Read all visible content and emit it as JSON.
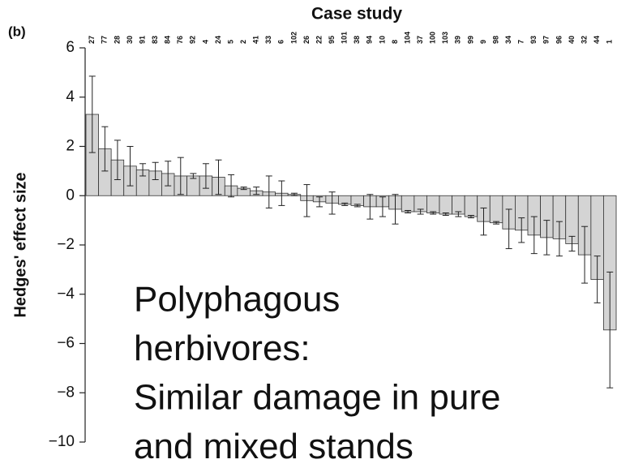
{
  "chart_data": {
    "type": "bar",
    "panel_label": "(b)",
    "title": "Case study",
    "y_label": "Hedges' effect size",
    "annotation": [
      "Polyphagous",
      "herbivores:",
      "Similar damage in pure",
      "and mixed stands"
    ],
    "categories": [
      "27",
      "77",
      "28",
      "30",
      "91",
      "83",
      "84",
      "76",
      "92",
      "4",
      "24",
      "5",
      "2",
      "41",
      "33",
      "6",
      "102",
      "26",
      "22",
      "95",
      "101",
      "38",
      "94",
      "10",
      "8",
      "104",
      "37",
      "100",
      "103",
      "39",
      "99",
      "9",
      "98",
      "34",
      "7",
      "93",
      "97",
      "96",
      "40",
      "32",
      "44",
      "1"
    ],
    "values": [
      3.3,
      1.9,
      1.45,
      1.2,
      1.05,
      1.0,
      0.9,
      0.8,
      0.8,
      0.8,
      0.75,
      0.4,
      0.3,
      0.2,
      0.15,
      0.1,
      0.05,
      -0.2,
      -0.25,
      -0.3,
      -0.35,
      -0.4,
      -0.45,
      -0.45,
      -0.55,
      -0.65,
      -0.65,
      -0.7,
      -0.75,
      -0.75,
      -0.85,
      -1.05,
      -1.1,
      -1.35,
      -1.4,
      -1.6,
      -1.7,
      -1.75,
      -1.95,
      -2.4,
      -3.4,
      -5.45
    ],
    "errors": [
      1.55,
      0.9,
      0.8,
      0.8,
      0.25,
      0.35,
      0.5,
      0.75,
      0.1,
      0.5,
      0.7,
      0.45,
      0.05,
      0.15,
      0.65,
      0.5,
      0.05,
      0.65,
      0.2,
      0.45,
      0.05,
      0.05,
      0.5,
      0.4,
      0.6,
      0.05,
      0.1,
      0.05,
      0.05,
      0.1,
      0.05,
      0.55,
      0.05,
      0.8,
      0.5,
      0.75,
      0.7,
      0.7,
      0.3,
      1.15,
      0.95,
      2.35
    ],
    "color": "#d4d4d4",
    "ylim": [
      -10,
      6
    ],
    "yticks": [
      {
        "value": -10,
        "label": "−10"
      },
      {
        "value": -8,
        "label": "−8"
      },
      {
        "value": -6,
        "label": "−6"
      },
      {
        "value": -4,
        "label": "−4"
      },
      {
        "value": -2,
        "label": "−2"
      },
      0,
      2,
      4,
      6
    ]
  }
}
